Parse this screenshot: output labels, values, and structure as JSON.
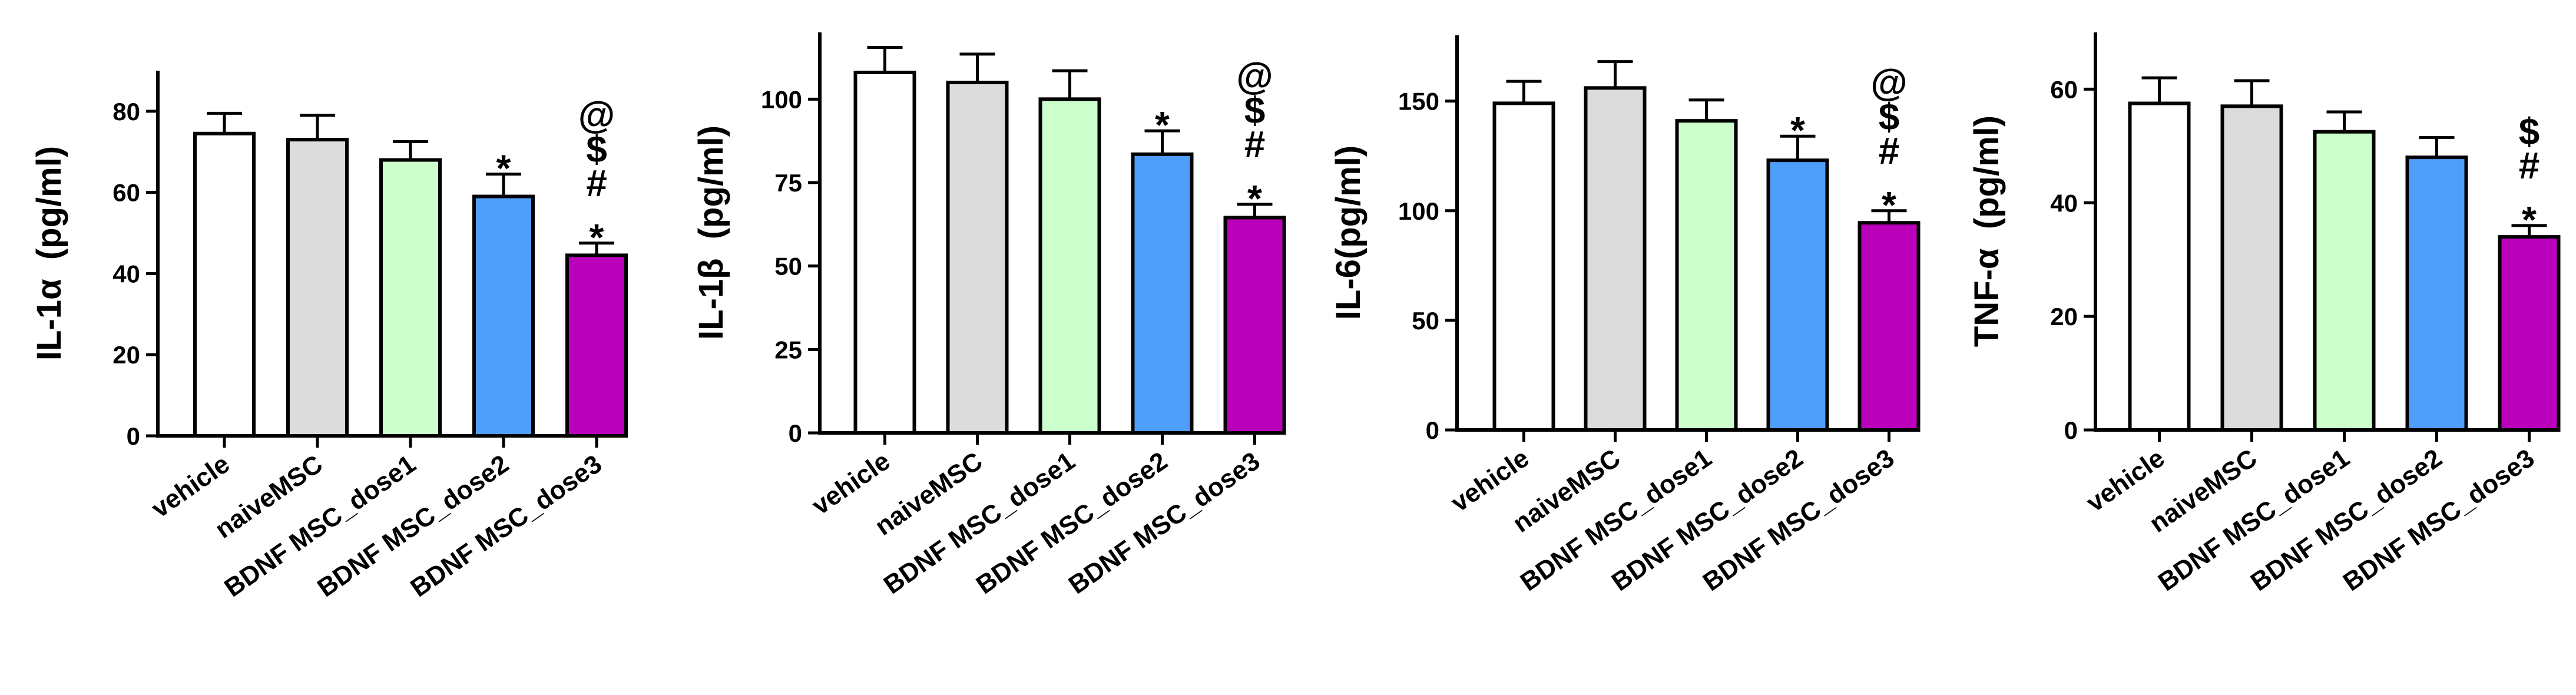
{
  "figure": {
    "description_free": true
  },
  "chart_data": [
    {
      "type": "bar",
      "ylabel": "IL-1α  (pg/ml)",
      "categories": [
        "vehicle",
        "naiveMSC",
        "BDNF MSC_dose1",
        "BDNF MSC_dose2",
        "BDNF MSC_dose3"
      ],
      "values": [
        74.5,
        73,
        68,
        59,
        44.5
      ],
      "errors": [
        5,
        6,
        4.5,
        5.5,
        3
      ],
      "significance": [
        [],
        [],
        [],
        [
          "*"
        ],
        [
          "*",
          "#",
          "$",
          "@"
        ]
      ],
      "ylim": [
        0,
        90
      ],
      "yticks": [
        0,
        20,
        40,
        60,
        80
      ],
      "colors": [
        "#ffffff",
        "#dcdcdc",
        "#ccffcc",
        "#4f9ffa",
        "#bb00bb"
      ]
    },
    {
      "type": "bar",
      "ylabel": "IL-1β  (pg/ml)",
      "categories": [
        "vehicle",
        "naiveMSC",
        "BDNF MSC_dose1",
        "BDNF MSC_dose2",
        "BDNF MSC_dose3"
      ],
      "values": [
        108,
        105,
        100,
        83.5,
        64.5
      ],
      "errors": [
        7.5,
        8.5,
        8.5,
        7,
        4
      ],
      "significance": [
        [],
        [],
        [],
        [
          "*"
        ],
        [
          "*",
          "#",
          "$",
          "@"
        ]
      ],
      "ylim": [
        0,
        120
      ],
      "yticks": [
        0,
        25,
        50,
        75,
        100
      ],
      "colors": [
        "#ffffff",
        "#dcdcdc",
        "#ccffcc",
        "#4f9ffa",
        "#bb00bb"
      ]
    },
    {
      "type": "bar",
      "ylabel": "IL-6(pg/ml)",
      "categories": [
        "vehicle",
        "naiveMSC",
        "BDNF MSC_dose1",
        "BDNF MSC_dose2",
        "BDNF MSC_dose3"
      ],
      "values": [
        149,
        156,
        141,
        123,
        94.5
      ],
      "errors": [
        10,
        12,
        9.5,
        11,
        5.5
      ],
      "significance": [
        [],
        [],
        [],
        [
          "*"
        ],
        [
          "*",
          "#",
          "$",
          "@"
        ]
      ],
      "ylim": [
        0,
        180
      ],
      "yticks": [
        0,
        50,
        100,
        150
      ],
      "colors": [
        "#ffffff",
        "#dcdcdc",
        "#ccffcc",
        "#4f9ffa",
        "#bb00bb"
      ]
    },
    {
      "type": "bar",
      "ylabel": "TNF-α  (pg/ml)",
      "categories": [
        "vehicle",
        "naiveMSC",
        "BDNF MSC_dose1",
        "BDNF MSC_dose2",
        "BDNF MSC_dose3"
      ],
      "values": [
        57.5,
        57,
        52.5,
        48,
        34
      ],
      "errors": [
        4.5,
        4.5,
        3.5,
        3.5,
        2
      ],
      "significance": [
        [],
        [],
        [],
        [],
        [
          "*",
          "#",
          "$"
        ]
      ],
      "ylim": [
        0,
        70
      ],
      "yticks": [
        0,
        20,
        40,
        60
      ],
      "colors": [
        "#ffffff",
        "#dcdcdc",
        "#ccffcc",
        "#4f9ffa",
        "#bb00bb"
      ]
    }
  ]
}
